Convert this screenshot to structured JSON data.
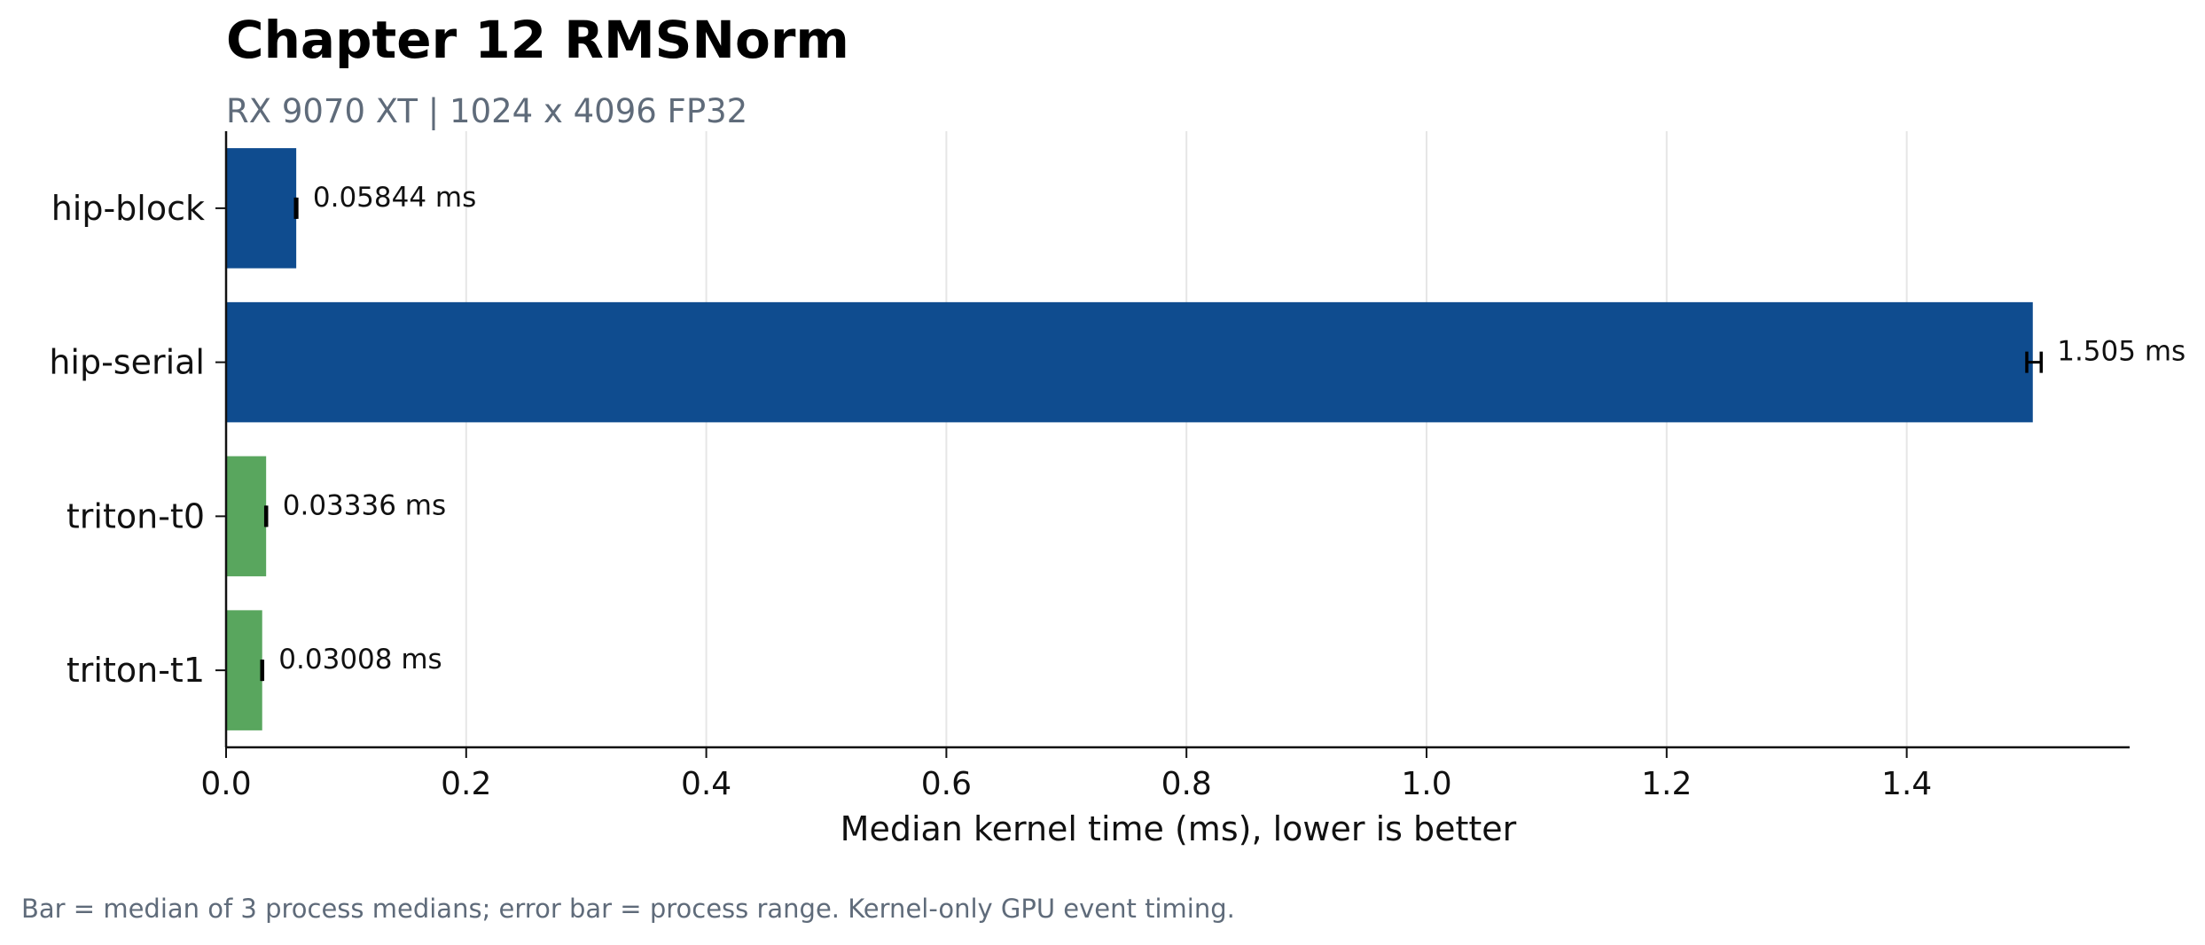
{
  "chart_data": {
    "type": "bar",
    "orientation": "horizontal",
    "title": "Chapter 12 RMSNorm",
    "subtitle": "RX 9070 XT | 1024 x 4096 FP32",
    "xlabel": "Median kernel time (ms), lower is better",
    "footnote": "Bar = median of 3 process medians; error bar = process range. Kernel-only GPU event timing.",
    "categories": [
      "hip-block",
      "hip-serial",
      "triton-t0",
      "triton-t1"
    ],
    "values": [
      0.05844,
      1.505,
      0.03336,
      0.03008
    ],
    "error_low": [
      0.0578,
      1.5,
      0.033,
      0.0297
    ],
    "error_high": [
      0.059,
      1.512,
      0.0338,
      0.0305
    ],
    "value_labels": [
      "0.05844 ms",
      "1.505 ms",
      "0.03336 ms",
      "0.03008 ms"
    ],
    "bar_colors": [
      "#0f4c8f",
      "#0f4c8f",
      "#59a65e",
      "#59a65e"
    ],
    "xlim": [
      0,
      1.585
    ],
    "xticks": [
      0.0,
      0.2,
      0.4,
      0.6,
      0.8,
      1.0,
      1.2,
      1.4
    ],
    "xtick_labels": [
      "0.0",
      "0.2",
      "0.4",
      "0.6",
      "0.8",
      "1.0",
      "1.2",
      "1.4"
    ],
    "grid": true,
    "grid_axis": "x",
    "legend": false
  }
}
